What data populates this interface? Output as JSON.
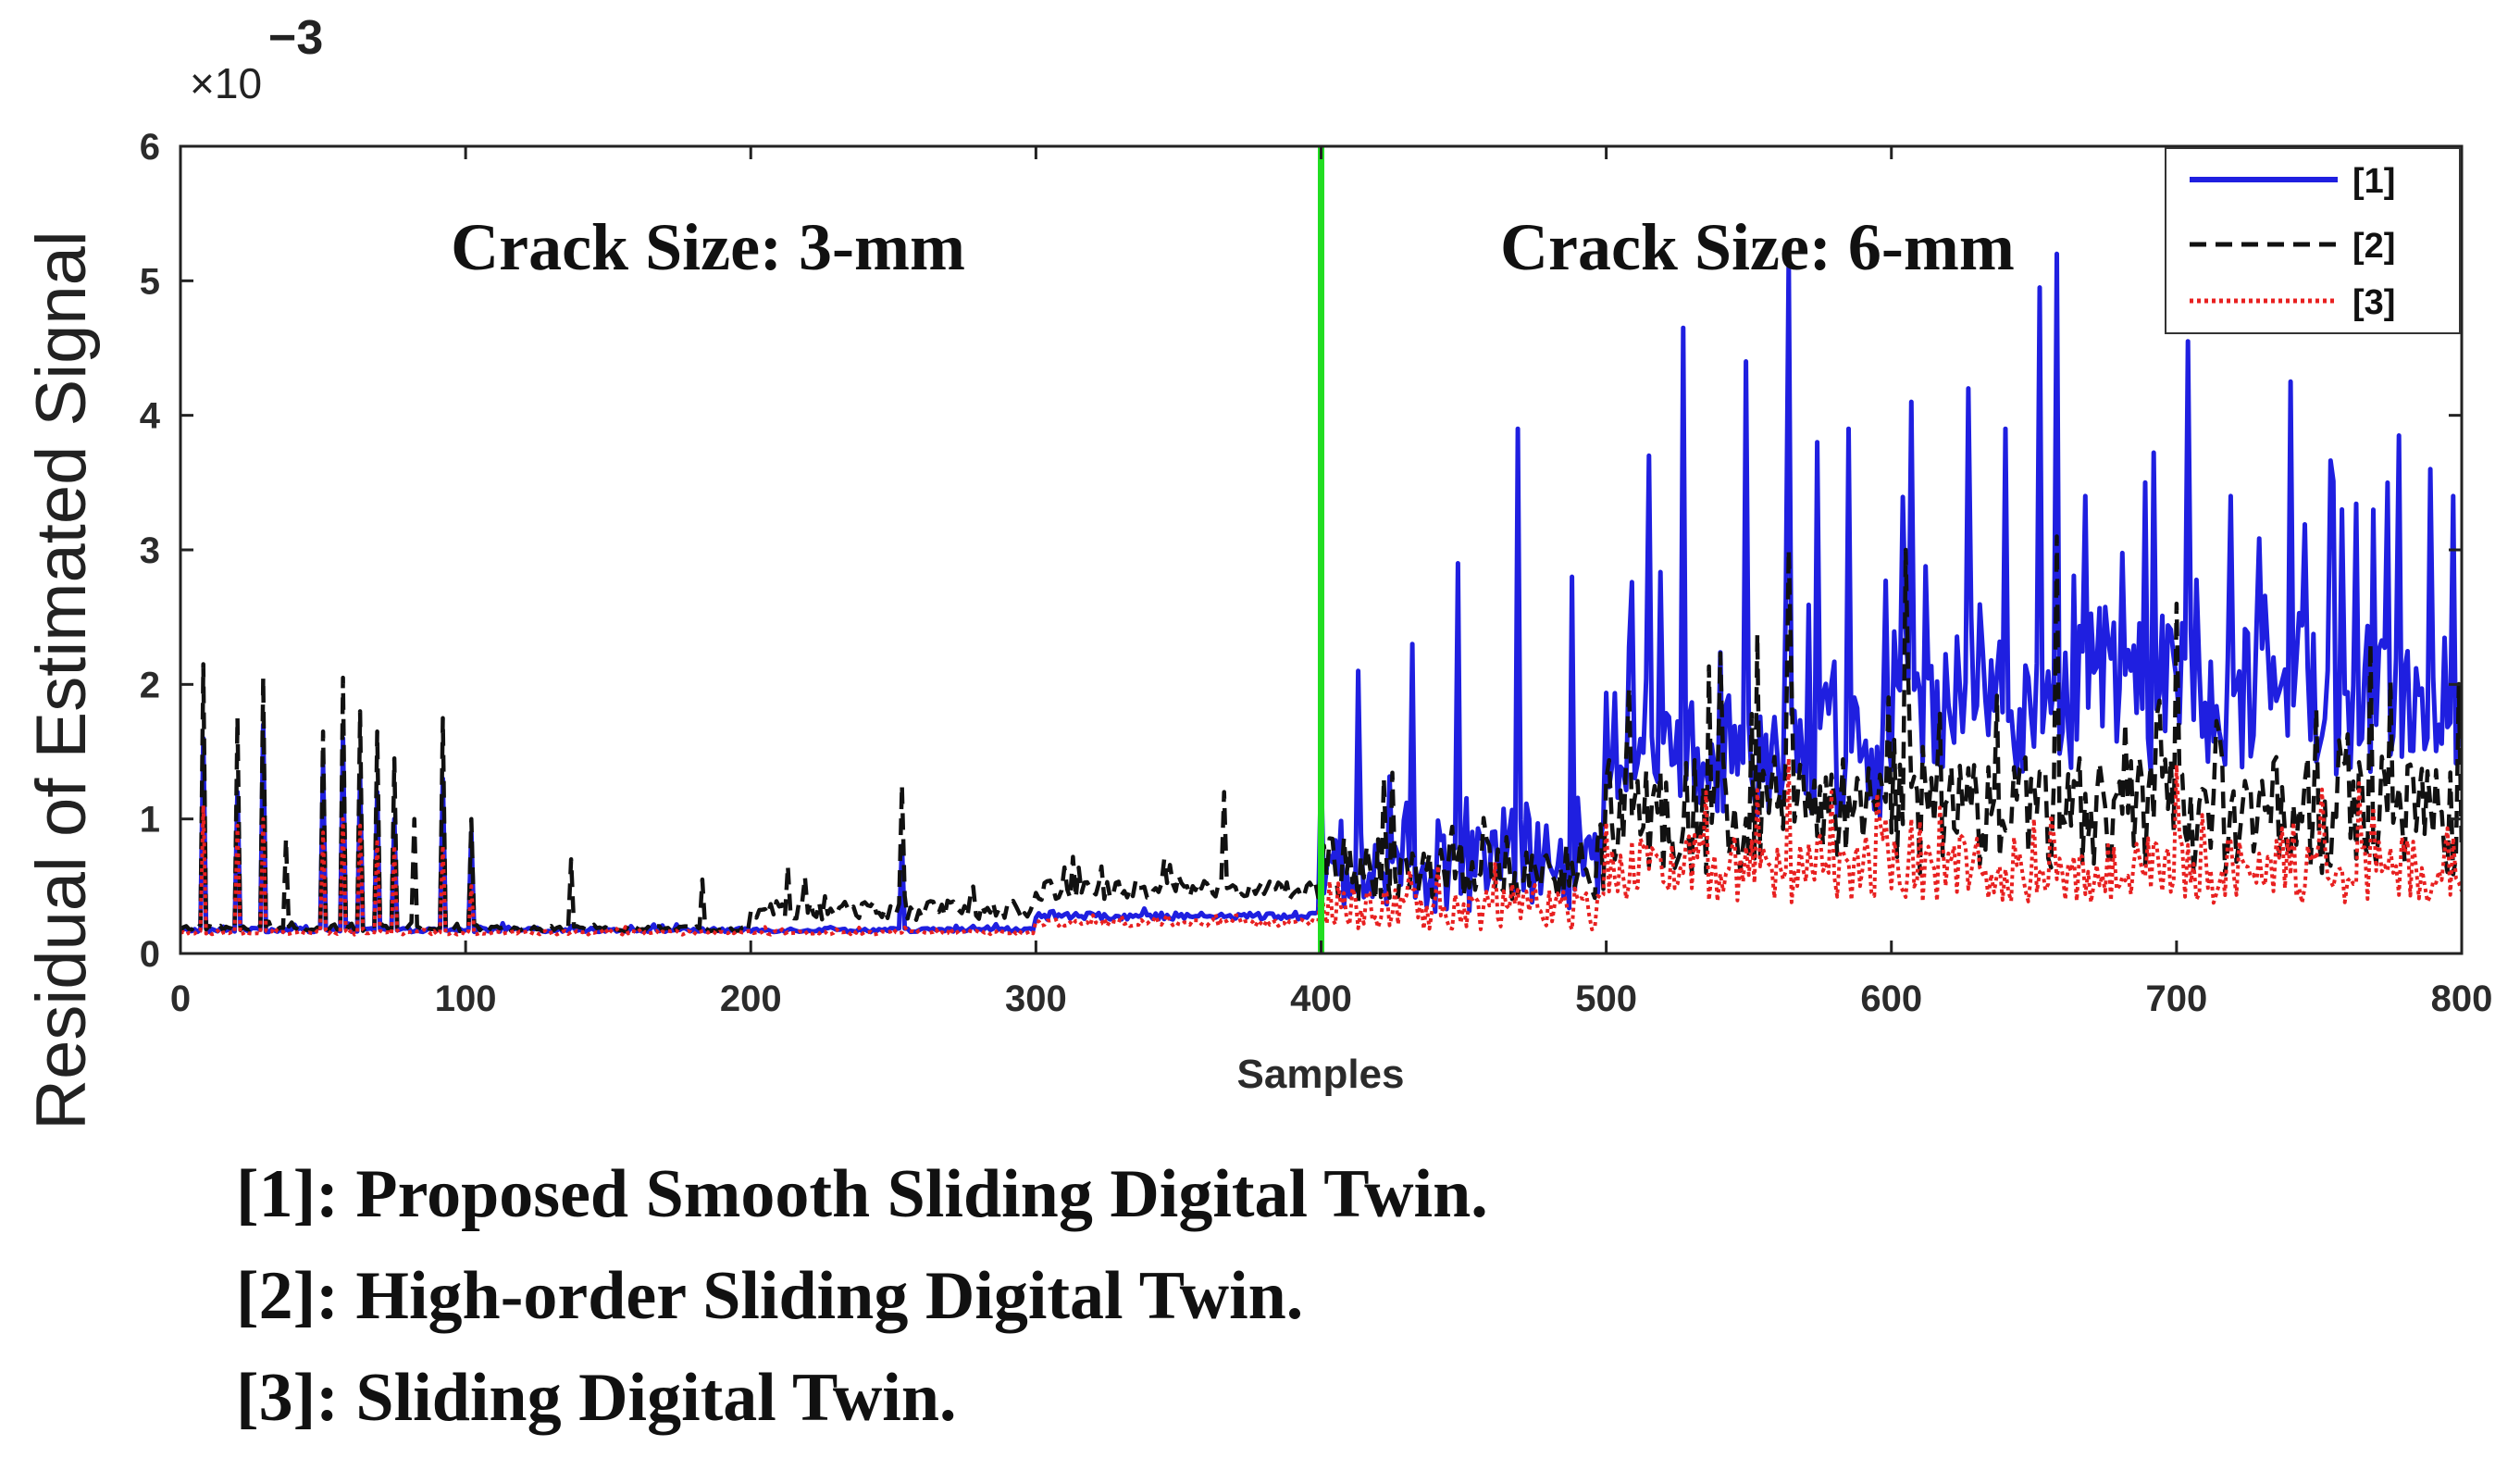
{
  "chart_data": {
    "type": "line",
    "title": "",
    "xlabel": "Samples",
    "ylabel": "Residual of Estimated Signal",
    "y_multiplier_base": "×10",
    "y_multiplier_exponent": "−3",
    "xlim": [
      0,
      800
    ],
    "ylim": [
      0,
      6
    ],
    "x_ticks": [
      "0",
      "100",
      "200",
      "300",
      "400",
      "500",
      "600",
      "700",
      "800"
    ],
    "y_ticks": [
      "0",
      "1",
      "2",
      "3",
      "4",
      "5",
      "6"
    ],
    "grid": false,
    "legend_position": "top-right",
    "divider": {
      "x": 400,
      "color": "#22dd22"
    },
    "annotations": [
      {
        "text": "Crack Size: 3-mm",
        "x": 185,
        "y": 5.25
      },
      {
        "text": "Crack Size: 6-mm",
        "x": 553,
        "y": 5.25
      }
    ],
    "series": [
      {
        "name": "[1]",
        "color": "#1f1fe0",
        "style": "solid",
        "segments": [
          {
            "range": [
              0,
              300
            ],
            "base": 0.17,
            "noise": 0.03
          },
          {
            "range": [
              300,
              400
            ],
            "base": 0.27,
            "noise": 0.05
          },
          {
            "range": [
              400,
              500
            ],
            "base": 0.55,
            "noise": 0.7
          },
          {
            "range": [
              500,
              600
            ],
            "base": 1.4,
            "noise": 1.1
          },
          {
            "range": [
              600,
              800
            ],
            "base": 1.75,
            "noise": 1.2
          }
        ],
        "peaks": [
          [
            8,
            1.6
          ],
          [
            20,
            1.2
          ],
          [
            29,
            1.7
          ],
          [
            50,
            1.4
          ],
          [
            57,
            1.6
          ],
          [
            63,
            1.3
          ],
          [
            69,
            1.2
          ],
          [
            75,
            1.0
          ],
          [
            92,
            1.3
          ],
          [
            102,
            0.9
          ],
          [
            253,
            0.8
          ],
          [
            413,
            2.1
          ],
          [
            432,
            2.3
          ],
          [
            448,
            2.9
          ],
          [
            469,
            3.9
          ],
          [
            488,
            2.8
          ],
          [
            515,
            3.7
          ],
          [
            527,
            4.65
          ],
          [
            549,
            4.4
          ],
          [
            564,
            5.15
          ],
          [
            574,
            3.8
          ],
          [
            585,
            3.9
          ],
          [
            607,
            4.1
          ],
          [
            627,
            4.2
          ],
          [
            640,
            3.9
          ],
          [
            652,
            4.95
          ],
          [
            658,
            5.2
          ],
          [
            668,
            3.4
          ],
          [
            689,
            3.5
          ],
          [
            704,
            4.55
          ],
          [
            719,
            3.4
          ],
          [
            740,
            4.25
          ],
          [
            758,
            3.3
          ],
          [
            778,
            3.85
          ],
          [
            789,
            3.6
          ],
          [
            797,
            3.4
          ]
        ]
      },
      {
        "name": "[2]",
        "color": "#111111",
        "style": "dashed",
        "segments": [
          {
            "range": [
              0,
              200
            ],
            "base": 0.18,
            "noise": 0.04
          },
          {
            "range": [
              200,
              300
            ],
            "base": 0.3,
            "noise": 0.15
          },
          {
            "range": [
              300,
              400
            ],
            "base": 0.45,
            "noise": 0.15
          },
          {
            "range": [
              400,
              500
            ],
            "base": 0.55,
            "noise": 0.5
          },
          {
            "range": [
              500,
              800
            ],
            "base": 0.9,
            "noise": 0.9
          }
        ],
        "peaks": [
          [
            8,
            2.15
          ],
          [
            20,
            1.75
          ],
          [
            29,
            2.05
          ],
          [
            37,
            0.85
          ],
          [
            50,
            1.65
          ],
          [
            57,
            2.05
          ],
          [
            63,
            1.8
          ],
          [
            69,
            1.65
          ],
          [
            75,
            1.45
          ],
          [
            82,
            1.0
          ],
          [
            92,
            1.75
          ],
          [
            102,
            1.0
          ],
          [
            137,
            0.7
          ],
          [
            183,
            0.55
          ],
          [
            213,
            0.65
          ],
          [
            253,
            1.25
          ],
          [
            345,
            0.7
          ],
          [
            366,
            1.2
          ],
          [
            564,
            3.0
          ],
          [
            605,
            3.0
          ],
          [
            658,
            3.1
          ],
          [
            700,
            2.6
          ]
        ]
      },
      {
        "name": "[3]",
        "color": "#e82020",
        "style": "dotted",
        "segments": [
          {
            "range": [
              0,
              300
            ],
            "base": 0.15,
            "noise": 0.03
          },
          {
            "range": [
              300,
              400
            ],
            "base": 0.22,
            "noise": 0.05
          },
          {
            "range": [
              400,
              500
            ],
            "base": 0.3,
            "noise": 0.35
          },
          {
            "range": [
              500,
              800
            ],
            "base": 0.55,
            "noise": 0.5
          }
        ],
        "peaks": [
          [
            8,
            1.1
          ],
          [
            20,
            0.95
          ],
          [
            29,
            1.0
          ],
          [
            50,
            0.9
          ],
          [
            57,
            1.0
          ],
          [
            63,
            0.95
          ],
          [
            69,
            0.85
          ],
          [
            75,
            0.8
          ],
          [
            92,
            0.8
          ],
          [
            102,
            0.5
          ],
          [
            535,
            1.2
          ],
          [
            564,
            1.45
          ],
          [
            607,
            1.0
          ],
          [
            650,
            1.0
          ],
          [
            700,
            1.4
          ]
        ]
      }
    ]
  },
  "footnotes": [
    "[1]: Proposed Smooth Sliding Digital Twin.",
    "[2]: High-order Sliding Digital Twin.",
    "[3]: Sliding Digital Twin."
  ]
}
